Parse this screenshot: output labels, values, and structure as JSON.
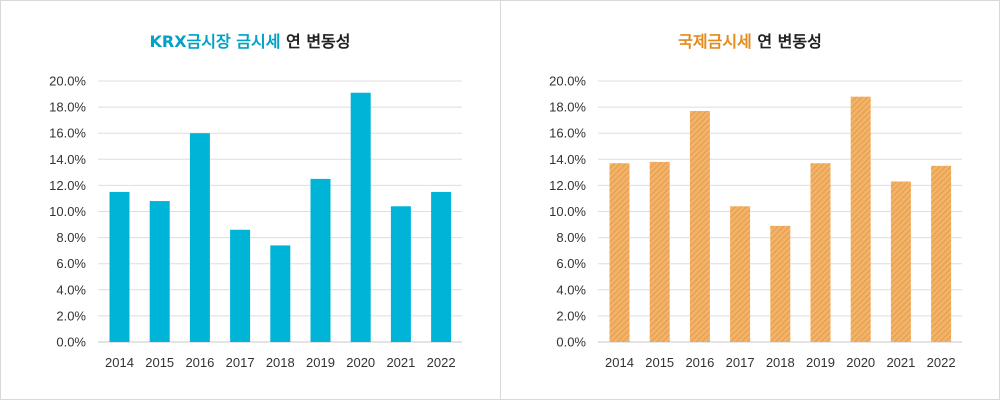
{
  "colors": {
    "krx_accent": "#00a2c6",
    "krx_bar": "#00b4d8",
    "intl_accent": "#e38b1d",
    "intl_bar": "#f2b46a",
    "intl_bar_stripe": "#e89f4d",
    "title_text": "#222222",
    "grid": "#dedede",
    "border": "#d9d9d9"
  },
  "chart_data": [
    {
      "type": "bar",
      "title_highlight": "KRX금시장 금시세",
      "title_rest": "연 변동성",
      "categories": [
        "2014",
        "2015",
        "2016",
        "2017",
        "2018",
        "2019",
        "2020",
        "2021",
        "2022"
      ],
      "values": [
        11.5,
        10.8,
        16.0,
        8.6,
        7.4,
        12.5,
        19.1,
        10.4,
        11.5
      ],
      "ylim": [
        0,
        20
      ],
      "yticks": [
        "0.0%",
        "2.0%",
        "4.0%",
        "6.0%",
        "8.0%",
        "10.0%",
        "12.0%",
        "14.0%",
        "16.0%",
        "18.0%",
        "20.0%"
      ],
      "grid": true,
      "legend": "none"
    },
    {
      "type": "bar",
      "title_highlight": "국제금시세",
      "title_rest": "연 변동성",
      "categories": [
        "2014",
        "2015",
        "2016",
        "2017",
        "2018",
        "2019",
        "2020",
        "2021",
        "2022"
      ],
      "values": [
        13.7,
        13.8,
        17.7,
        10.4,
        8.9,
        13.7,
        18.8,
        12.3,
        13.5
      ],
      "ylim": [
        0,
        20
      ],
      "yticks": [
        "0.0%",
        "2.0%",
        "4.0%",
        "6.0%",
        "8.0%",
        "10.0%",
        "12.0%",
        "14.0%",
        "16.0%",
        "18.0%",
        "20.0%"
      ],
      "grid": true,
      "legend": "none"
    }
  ]
}
